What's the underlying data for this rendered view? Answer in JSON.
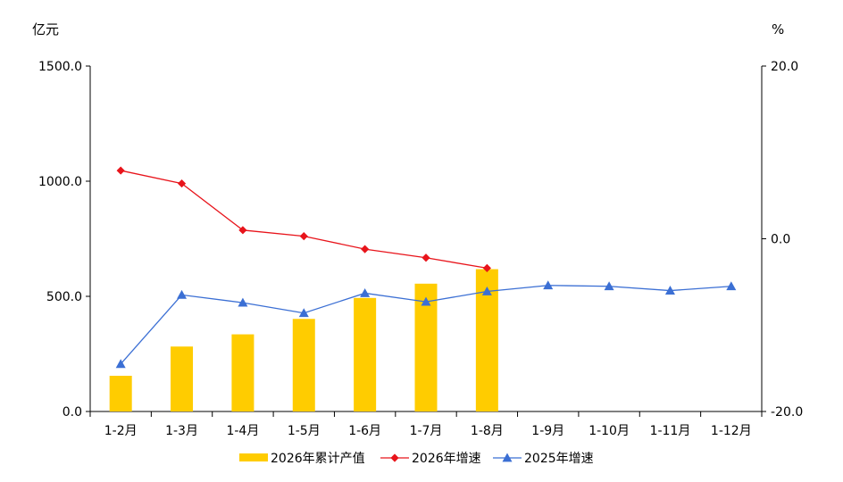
{
  "chart_data": {
    "type": "bar",
    "categories": [
      "1-2月",
      "1-3月",
      "1-4月",
      "1-5月",
      "1-6月",
      "1-7月",
      "1-8月",
      "1-9月",
      "1-10月",
      "1-11月",
      "1-12月"
    ],
    "left_axis": {
      "unit": "亿元",
      "ylim": [
        0,
        1500
      ],
      "ticks": [
        0,
        500,
        1000,
        1500
      ],
      "tick_labels": [
        "0.0",
        "500.0",
        "1000.0",
        "1500.0"
      ]
    },
    "right_axis": {
      "unit": "%",
      "ylim": [
        -20,
        20
      ],
      "ticks": [
        -20,
        0,
        20
      ],
      "tick_labels": [
        "-20.0",
        "0.0",
        "20.0"
      ]
    },
    "series": [
      {
        "name": "2026年累计产值",
        "type": "bar",
        "axis": "left",
        "color": "#FFCC00",
        "values": [
          155,
          282,
          335,
          402,
          493,
          555,
          618,
          null,
          null,
          null,
          null
        ]
      },
      {
        "name": "2026年增速",
        "type": "line",
        "axis": "right",
        "color": "#E8141B",
        "marker": "diamond",
        "values": [
          7.9,
          6.4,
          1.0,
          0.3,
          -1.2,
          -2.2,
          -3.4,
          null,
          null,
          null,
          null
        ]
      },
      {
        "name": "2025年增速",
        "type": "line",
        "axis": "right",
        "color": "#3B6FD4",
        "marker": "triangle",
        "values": [
          -14.5,
          -6.5,
          -7.4,
          -8.6,
          -6.3,
          -7.3,
          -6.1,
          -5.4,
          -5.5,
          -6.0,
          -5.5
        ]
      }
    ],
    "legend_position": "bottom",
    "grid": false
  }
}
